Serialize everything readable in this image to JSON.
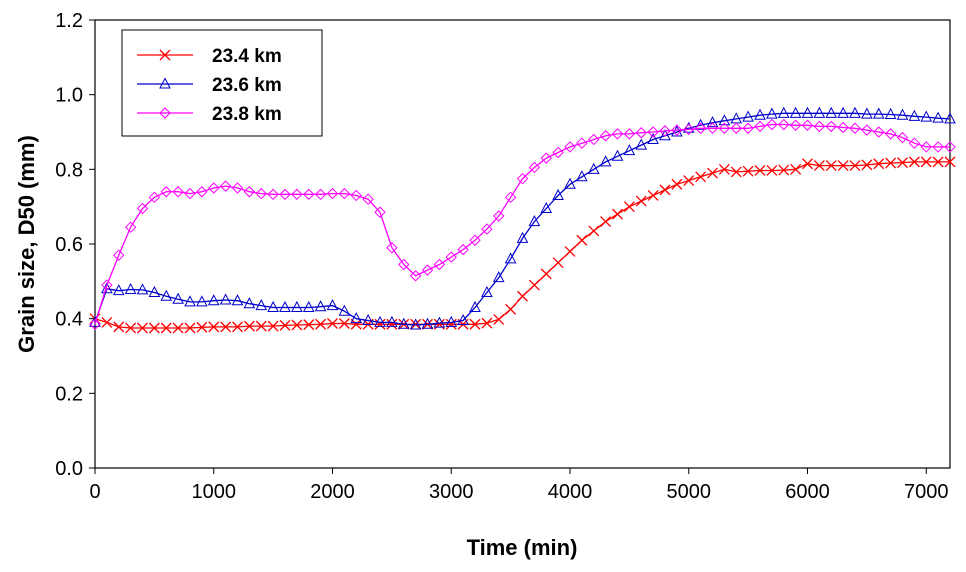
{
  "chart_data": {
    "type": "line",
    "xlabel": "Time (min)",
    "ylabel": "Grain size, D50 (mm)",
    "xlim": [
      0,
      7200
    ],
    "ylim": [
      0.0,
      1.2
    ],
    "x_ticks": [
      "0",
      "1000",
      "2000",
      "3000",
      "4000",
      "5000",
      "6000",
      "7000"
    ],
    "y_ticks": [
      "0.0",
      "0.2",
      "0.4",
      "0.6",
      "0.8",
      "1.0",
      "1.2"
    ],
    "grid": false,
    "legend_position": "top-left",
    "series": [
      {
        "name": "23.4 km",
        "color": "#ff0000",
        "marker": "x-mark",
        "x": [
          0,
          100,
          200,
          300,
          400,
          500,
          600,
          700,
          800,
          900,
          1000,
          1100,
          1200,
          1300,
          1400,
          1500,
          1600,
          1700,
          1800,
          1900,
          2000,
          2100,
          2200,
          2300,
          2400,
          2500,
          2600,
          2700,
          2800,
          2900,
          3000,
          3100,
          3200,
          3300,
          3400,
          3500,
          3600,
          3700,
          3800,
          3900,
          4000,
          4100,
          4200,
          4300,
          4400,
          4500,
          4600,
          4700,
          4800,
          4900,
          5000,
          5100,
          5200,
          5300,
          5400,
          5500,
          5600,
          5700,
          5800,
          5900,
          6000,
          6100,
          6200,
          6300,
          6400,
          6500,
          6600,
          6700,
          6800,
          6900,
          7000,
          7100,
          7200
        ],
        "y": [
          0.4,
          0.39,
          0.378,
          0.375,
          0.375,
          0.375,
          0.375,
          0.375,
          0.375,
          0.377,
          0.378,
          0.378,
          0.378,
          0.38,
          0.38,
          0.38,
          0.382,
          0.383,
          0.384,
          0.385,
          0.387,
          0.387,
          0.385,
          0.385,
          0.385,
          0.385,
          0.385,
          0.385,
          0.385,
          0.385,
          0.385,
          0.385,
          0.385,
          0.388,
          0.398,
          0.425,
          0.46,
          0.49,
          0.52,
          0.55,
          0.58,
          0.61,
          0.635,
          0.66,
          0.68,
          0.7,
          0.715,
          0.73,
          0.745,
          0.76,
          0.77,
          0.78,
          0.79,
          0.8,
          0.793,
          0.795,
          0.797,
          0.797,
          0.798,
          0.8,
          0.815,
          0.81,
          0.81,
          0.81,
          0.81,
          0.812,
          0.815,
          0.817,
          0.818,
          0.82,
          0.82,
          0.82,
          0.82
        ]
      },
      {
        "name": "23.6 km",
        "color": "#0000cc",
        "marker": "triangle",
        "x": [
          0,
          100,
          200,
          300,
          400,
          500,
          600,
          700,
          800,
          900,
          1000,
          1100,
          1200,
          1300,
          1400,
          1500,
          1600,
          1700,
          1800,
          1900,
          2000,
          2100,
          2200,
          2300,
          2400,
          2500,
          2600,
          2700,
          2800,
          2900,
          3000,
          3100,
          3200,
          3300,
          3400,
          3500,
          3600,
          3700,
          3800,
          3900,
          4000,
          4100,
          4200,
          4300,
          4400,
          4500,
          4600,
          4700,
          4800,
          4900,
          5000,
          5100,
          5200,
          5300,
          5400,
          5500,
          5600,
          5700,
          5800,
          5900,
          6000,
          6100,
          6200,
          6300,
          6400,
          6500,
          6600,
          6700,
          6800,
          6900,
          7000,
          7100,
          7200
        ],
        "y": [
          0.39,
          0.48,
          0.475,
          0.478,
          0.477,
          0.47,
          0.46,
          0.452,
          0.445,
          0.445,
          0.448,
          0.45,
          0.448,
          0.44,
          0.435,
          0.43,
          0.43,
          0.43,
          0.43,
          0.432,
          0.435,
          0.42,
          0.4,
          0.395,
          0.39,
          0.39,
          0.385,
          0.383,
          0.385,
          0.388,
          0.39,
          0.395,
          0.43,
          0.47,
          0.51,
          0.56,
          0.615,
          0.66,
          0.695,
          0.73,
          0.76,
          0.78,
          0.8,
          0.82,
          0.835,
          0.85,
          0.865,
          0.88,
          0.89,
          0.9,
          0.91,
          0.918,
          0.925,
          0.93,
          0.935,
          0.94,
          0.945,
          0.948,
          0.95,
          0.95,
          0.95,
          0.95,
          0.95,
          0.95,
          0.95,
          0.948,
          0.948,
          0.947,
          0.945,
          0.942,
          0.94,
          0.937,
          0.935
        ]
      },
      {
        "name": "23.8 km",
        "color": "#ff00ff",
        "marker": "diamond",
        "x": [
          0,
          100,
          200,
          300,
          400,
          500,
          600,
          700,
          800,
          900,
          1000,
          1100,
          1200,
          1300,
          1400,
          1500,
          1600,
          1700,
          1800,
          1900,
          2000,
          2100,
          2200,
          2300,
          2400,
          2500,
          2600,
          2700,
          2800,
          2900,
          3000,
          3100,
          3200,
          3300,
          3400,
          3500,
          3600,
          3700,
          3800,
          3900,
          4000,
          4100,
          4200,
          4300,
          4400,
          4500,
          4600,
          4700,
          4800,
          4900,
          5000,
          5100,
          5200,
          5300,
          5400,
          5500,
          5600,
          5700,
          5800,
          5900,
          6000,
          6100,
          6200,
          6300,
          6400,
          6500,
          6600,
          6700,
          6800,
          6900,
          7000,
          7100,
          7200
        ],
        "y": [
          0.385,
          0.49,
          0.57,
          0.645,
          0.695,
          0.725,
          0.74,
          0.74,
          0.735,
          0.74,
          0.75,
          0.755,
          0.75,
          0.74,
          0.735,
          0.733,
          0.733,
          0.733,
          0.733,
          0.733,
          0.735,
          0.735,
          0.73,
          0.72,
          0.685,
          0.59,
          0.545,
          0.515,
          0.53,
          0.545,
          0.565,
          0.585,
          0.61,
          0.64,
          0.675,
          0.725,
          0.775,
          0.805,
          0.83,
          0.845,
          0.86,
          0.87,
          0.88,
          0.89,
          0.895,
          0.895,
          0.898,
          0.9,
          0.903,
          0.905,
          0.907,
          0.91,
          0.91,
          0.91,
          0.91,
          0.91,
          0.915,
          0.92,
          0.92,
          0.918,
          0.918,
          0.915,
          0.915,
          0.912,
          0.91,
          0.905,
          0.9,
          0.895,
          0.885,
          0.87,
          0.86,
          0.86,
          0.86
        ]
      }
    ]
  }
}
